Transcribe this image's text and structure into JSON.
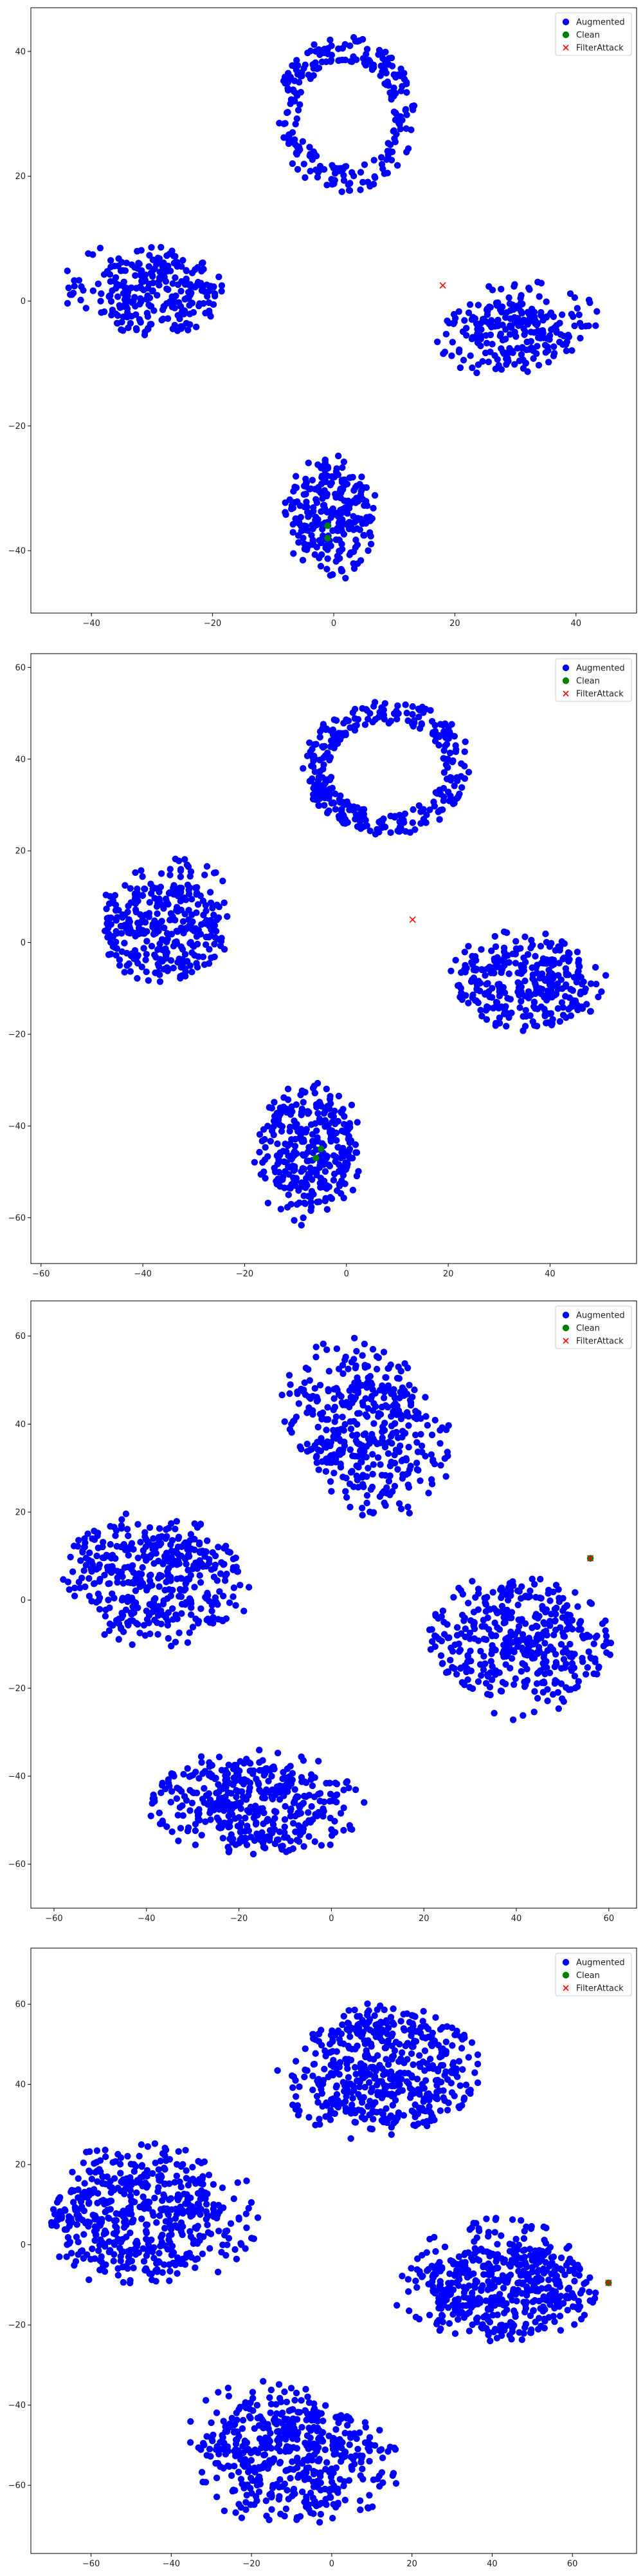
{
  "chart_data": [
    {
      "type": "scatter",
      "title": "",
      "xlabel": "",
      "ylabel": "",
      "xlim": [
        -50,
        50
      ],
      "ylim": [
        -50,
        47
      ],
      "xticks": [
        -40,
        -20,
        0,
        20,
        40
      ],
      "yticks": [
        -40,
        -20,
        0,
        20,
        40
      ],
      "grid": false,
      "legend_position": "top-right",
      "series": [
        {
          "name": "Augmented",
          "marker": "circle",
          "color": "#0000ff",
          "clusters": [
            {
              "shape": "ring",
              "cx": 2,
              "cy": 30,
              "rx": 11,
              "ry": 12,
              "n": 260,
              "seed": 11
            },
            {
              "shape": "blob",
              "cx": -30,
              "cy": 0,
              "rx": 14,
              "ry": 9,
              "n": 280,
              "seed": 12
            },
            {
              "shape": "blob",
              "cx": 31,
              "cy": -4,
              "rx": 14,
              "ry": 8,
              "n": 250,
              "seed": 13
            },
            {
              "shape": "blob",
              "cx": 0,
              "cy": -32,
              "rx": 9,
              "ry": 12,
              "n": 260,
              "seed": 14
            }
          ]
        },
        {
          "name": "Clean",
          "marker": "circle",
          "color": "#008000",
          "points": [
            [
              -1,
              -38
            ],
            [
              -1,
              -36
            ]
          ]
        },
        {
          "name": "FilterAttack",
          "marker": "x",
          "color": "#ff0000",
          "points": [
            [
              18,
              2.5
            ]
          ]
        }
      ]
    },
    {
      "type": "scatter",
      "title": "",
      "xlabel": "",
      "ylabel": "",
      "xlim": [
        -62,
        57
      ],
      "ylim": [
        -70,
        63
      ],
      "xticks": [
        -60,
        -40,
        -20,
        0,
        20,
        40
      ],
      "yticks": [
        -60,
        -40,
        -20,
        0,
        20,
        40,
        60
      ],
      "grid": false,
      "legend_position": "top-right",
      "series": [
        {
          "name": "Augmented",
          "marker": "circle",
          "color": "#0000ff",
          "clusters": [
            {
              "shape": "ring",
              "cx": 8,
              "cy": 38,
              "rx": 16,
              "ry": 14,
              "n": 330,
              "seed": 21
            },
            {
              "shape": "blob",
              "cx": -33,
              "cy": 5,
              "rx": 16,
              "ry": 15,
              "n": 340,
              "seed": 22
            },
            {
              "shape": "blob",
              "cx": 33,
              "cy": -9,
              "rx": 18,
              "ry": 12,
              "n": 330,
              "seed": 23
            },
            {
              "shape": "blob",
              "cx": -7,
              "cy": -43,
              "rx": 12,
              "ry": 18,
              "n": 330,
              "seed": 24
            }
          ]
        },
        {
          "name": "Clean",
          "marker": "circle",
          "color": "#008000",
          "points": [
            [
              -6,
              -47
            ],
            [
              -5,
              -45
            ]
          ]
        },
        {
          "name": "FilterAttack",
          "marker": "x",
          "color": "#ff0000",
          "points": [
            [
              13,
              5
            ]
          ]
        }
      ]
    },
    {
      "type": "scatter",
      "title": "",
      "xlabel": "",
      "ylabel": "",
      "xlim": [
        -65,
        66
      ],
      "ylim": [
        -70,
        68
      ],
      "xticks": [
        -60,
        -40,
        -20,
        0,
        20,
        40,
        60
      ],
      "yticks": [
        -60,
        -40,
        -20,
        0,
        20,
        40,
        60
      ],
      "grid": false,
      "legend_position": "top-right",
      "series": [
        {
          "name": "Augmented",
          "marker": "circle",
          "color": "#0000ff",
          "clusters": [
            {
              "shape": "blob",
              "cx": 8,
              "cy": 40,
              "rx": 19,
              "ry": 20,
              "n": 420,
              "seed": 31
            },
            {
              "shape": "blob",
              "cx": -35,
              "cy": 5,
              "rx": 23,
              "ry": 15,
              "n": 430,
              "seed": 32
            },
            {
              "shape": "blob",
              "cx": 40,
              "cy": -10,
              "rx": 21,
              "ry": 16,
              "n": 420,
              "seed": 33
            },
            {
              "shape": "blob",
              "cx": -16,
              "cy": -46,
              "rx": 23,
              "ry": 14,
              "n": 430,
              "seed": 34
            }
          ]
        },
        {
          "name": "Clean",
          "marker": "circle",
          "color": "#008000",
          "points": [
            [
              56,
              9.5
            ]
          ]
        },
        {
          "name": "FilterAttack",
          "marker": "x",
          "color": "#ff0000",
          "points": [
            [
              56,
              9.5
            ]
          ]
        }
      ]
    },
    {
      "type": "scatter",
      "title": "",
      "xlabel": "",
      "ylabel": "",
      "xlim": [
        -75,
        76
      ],
      "ylim": [
        -77,
        74
      ],
      "xticks": [
        -60,
        -40,
        -20,
        0,
        20,
        40,
        60
      ],
      "yticks": [
        -60,
        -40,
        -20,
        0,
        20,
        40,
        60
      ],
      "grid": false,
      "legend_position": "top-right",
      "series": [
        {
          "name": "Augmented",
          "marker": "circle",
          "color": "#0000ff",
          "clusters": [
            {
              "shape": "blob",
              "cx": 10,
              "cy": 45,
              "rx": 27,
              "ry": 20,
              "n": 520,
              "seed": 41
            },
            {
              "shape": "blob",
              "cx": -45,
              "cy": 5,
              "rx": 28,
              "ry": 22,
              "n": 540,
              "seed": 42
            },
            {
              "shape": "blob",
              "cx": 45,
              "cy": -8,
              "rx": 28,
              "ry": 16,
              "n": 520,
              "seed": 43
            },
            {
              "shape": "blob",
              "cx": -10,
              "cy": -50,
              "rx": 27,
              "ry": 18,
              "n": 530,
              "seed": 44
            }
          ]
        },
        {
          "name": "Clean",
          "marker": "circle",
          "color": "#008000",
          "points": [
            [
              69,
              -9.5
            ]
          ]
        },
        {
          "name": "FilterAttack",
          "marker": "x",
          "color": "#ff0000",
          "points": [
            [
              69,
              -9.5
            ]
          ]
        }
      ]
    }
  ]
}
